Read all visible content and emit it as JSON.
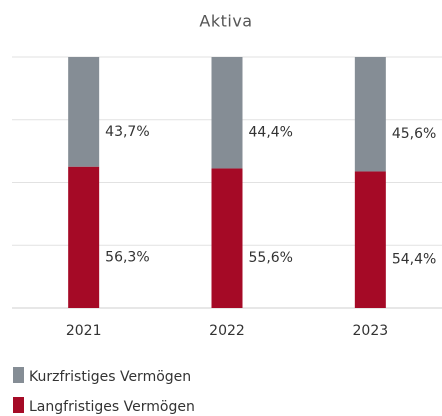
{
  "chart_data": {
    "type": "stacked_bar",
    "title": "Aktiva",
    "categories": [
      "2021",
      "2022",
      "2023"
    ],
    "series": [
      {
        "name": "Langfristiges Vermögen",
        "color": "#a50a26",
        "values": [
          56.3,
          55.6,
          54.4
        ],
        "value_labels": [
          "56,3%",
          "55,6%",
          "54,4%"
        ]
      },
      {
        "name": "Kurzfristiges Vermögen",
        "color": "#858d95",
        "values": [
          43.7,
          44.4,
          45.6
        ],
        "value_labels": [
          "43,7%",
          "44,4%",
          "45,6%"
        ]
      }
    ],
    "ylim": [
      0,
      100
    ],
    "yticks": [
      0,
      25,
      50,
      75,
      100
    ],
    "grid": true
  }
}
